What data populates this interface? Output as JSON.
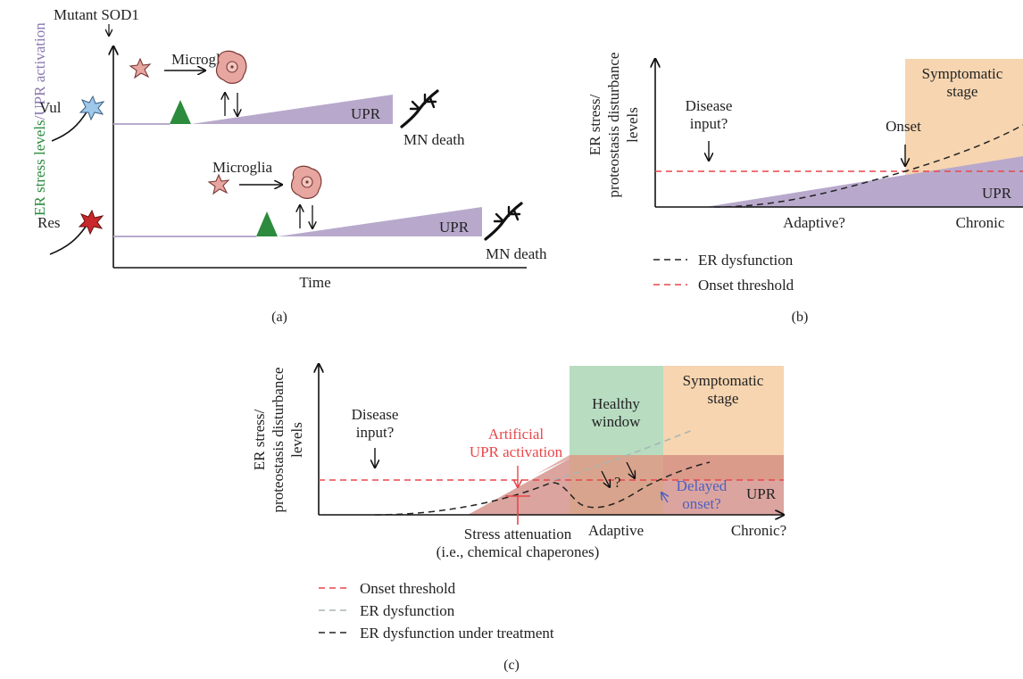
{
  "panel_a": {
    "caption": "(a)",
    "top_label": "Mutant SOD1",
    "y_label_green": "ER stress levels",
    "y_label_purple": "/UPR activation",
    "x_label": "Time",
    "vul_label": "Vul",
    "res_label": "Res",
    "microglia_1": "Microglia",
    "microglia_2": "Microglia",
    "upr_1": "UPR",
    "upr_2": "UPR",
    "death_1": "MN death",
    "death_2": "MN death"
  },
  "panel_b": {
    "caption": "(b)",
    "y_label_1": "ER stress/",
    "y_label_2": "proteostasis disturbance",
    "y_label_3": "levels",
    "disease_1": "Disease",
    "disease_2": "input?",
    "onset": "Onset",
    "symptomatic_1": "Symptomatic",
    "symptomatic_2": "stage",
    "upr": "UPR",
    "adaptive": "Adaptive?",
    "chronic": "Chronic",
    "legend": [
      {
        "label": "ER dysfunction",
        "color": "#222222"
      },
      {
        "label": "Onset threshold",
        "color": "#e8474a"
      }
    ]
  },
  "panel_c": {
    "caption": "(c)",
    "y_label_1": "ER stress/",
    "y_label_2": "proteostasis disturbance",
    "y_label_3": "levels",
    "disease_1": "Disease",
    "disease_2": "input?",
    "artificial_1": "Artificial",
    "artificial_2": "UPR activation",
    "healthy_1": "Healthy",
    "healthy_2": "window",
    "symptomatic_1": "Symptomatic",
    "symptomatic_2": "stage",
    "question": "?",
    "delayed_1": "Delayed",
    "delayed_2": "onset?",
    "upr": "UPR",
    "stress_1": "Stress attenuation",
    "stress_2": "(i.e., chemical chaperones)",
    "adaptive": "Adaptive",
    "chronic": "Chronic?",
    "legend": [
      {
        "label": "Onset threshold",
        "color": "#e8474a"
      },
      {
        "label": "ER dysfunction",
        "color": "#a8b4b4"
      },
      {
        "label": "ER dysfunction under treatment",
        "color": "#222222"
      }
    ]
  },
  "colors": {
    "upr_purple": "#b8a9cc",
    "upr_red": "#dba49f",
    "healthy_green": "#b7dcc0",
    "symptomatic_orange": "#f6d5b0",
    "threshold_red": "#e8474a",
    "grey_dash": "#a8b4b4",
    "delayed_blue": "#4d5fc0",
    "green_triangle": "#2d8b3e",
    "microglia_pink": "#e8a6a0",
    "neuron_blue": "#9ec8ea",
    "neuron_red": "#c8282b"
  }
}
